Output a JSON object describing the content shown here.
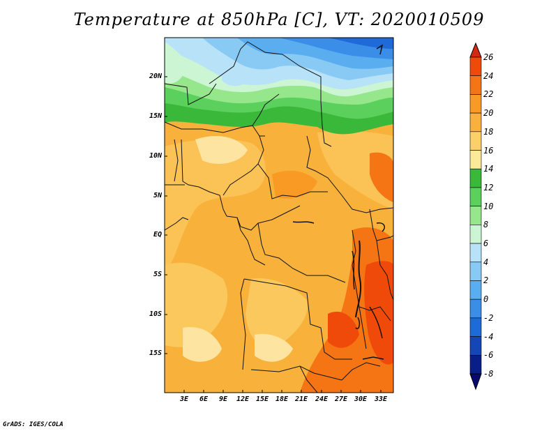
{
  "title": "Temperature at 850hPa [C], VT: 2020010509",
  "map": {
    "lat_labels": [
      "20N",
      "15N",
      "10N",
      "5N",
      "EQ",
      "5S",
      "10S",
      "15S"
    ],
    "lon_labels": [
      "3E",
      "6E",
      "9E",
      "12E",
      "15E",
      "18E",
      "21E",
      "24E",
      "27E",
      "30E",
      "33E"
    ]
  },
  "colorbar": {
    "labels": [
      "26",
      "24",
      "22",
      "20",
      "18",
      "16",
      "14",
      "12",
      "10",
      "8",
      "6",
      "4",
      "2",
      "0",
      "-2",
      "-4",
      "-6",
      "-8"
    ],
    "colors": [
      "#d22814",
      "#f04a0a",
      "#f57514",
      "#f89a24",
      "#f8b23c",
      "#fbd066",
      "#fcea9a",
      "#3ab83a",
      "#5cd05c",
      "#96e68c",
      "#ccf5d4",
      "#b8e2f8",
      "#88caf4",
      "#5aaef0",
      "#3a8ee8",
      "#1e6ad8",
      "#1446b8",
      "#0a1e8a",
      "#08086e"
    ]
  },
  "footer": "GrADS: IGES/COLA"
}
